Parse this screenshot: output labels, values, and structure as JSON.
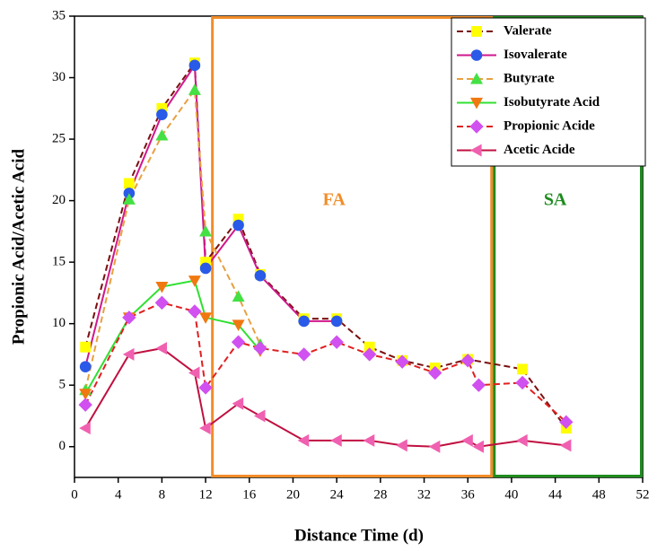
{
  "chart_data": {
    "type": "line",
    "x_label": "Distance Time (d)",
    "y_label": "Propionic Acid/Acetic Acid",
    "xlim": [
      0,
      52
    ],
    "xticks": [
      0,
      4,
      8,
      12,
      16,
      20,
      24,
      28,
      32,
      36,
      40,
      44,
      48,
      52
    ],
    "ylim": [
      -2.5,
      35
    ],
    "yticks": [
      0,
      5,
      10,
      15,
      20,
      25,
      30,
      35
    ],
    "regions": [
      {
        "label": "FA",
        "x": [
          12.5,
          38.3
        ],
        "color": "#f28c28"
      },
      {
        "label": "SA",
        "x": [
          38.3,
          52
        ],
        "color": "#1e8c1e"
      }
    ],
    "legend": "upper right",
    "series": [
      {
        "name": "Valerate",
        "color": "#ffff00",
        "line_color": "#7a1010",
        "dash": true,
        "marker": "square",
        "x": [
          1,
          5,
          8,
          11,
          12,
          15,
          17,
          21,
          24,
          27,
          30,
          33,
          36,
          41,
          45
        ],
        "values": [
          8.1,
          21.4,
          27.5,
          31.2,
          15.0,
          18.5,
          14.0,
          10.4,
          10.4,
          8.1,
          7.0,
          6.4,
          7.1,
          6.3,
          1.5
        ]
      },
      {
        "name": "Isovalerate",
        "color": "#2a5ae8",
        "line_color": "#d0188c",
        "dash": false,
        "marker": "circle",
        "x": [
          1,
          5,
          8,
          11,
          12,
          15,
          17,
          21,
          24
        ],
        "values": [
          6.5,
          20.6,
          27.0,
          31.0,
          14.5,
          18.0,
          13.9,
          10.2,
          10.2
        ]
      },
      {
        "name": "Butyrate",
        "color": "#44e044",
        "line_color": "#e8a040",
        "dash": true,
        "marker": "triangle-up",
        "x": [
          1,
          5,
          8,
          11,
          12,
          15,
          17
        ],
        "values": [
          4.6,
          20.1,
          25.3,
          29.0,
          17.5,
          12.2,
          8.3
        ]
      },
      {
        "name": "Isobutyrate Acid",
        "color": "#f07810",
        "line_color": "#30e030",
        "dash": false,
        "marker": "triangle-down",
        "x": [
          1,
          5,
          8,
          11,
          12,
          15,
          17
        ],
        "values": [
          4.3,
          10.5,
          13.0,
          13.5,
          10.5,
          9.9,
          7.8
        ]
      },
      {
        "name": "Propionic Acide",
        "color": "#d050f0",
        "line_color": "#e02020",
        "dash": true,
        "marker": "diamond",
        "x": [
          1,
          5,
          8,
          11,
          12,
          15,
          17,
          21,
          24,
          27,
          30,
          33,
          36,
          37,
          41,
          45
        ],
        "values": [
          3.4,
          10.5,
          11.7,
          11.0,
          4.8,
          8.5,
          8.0,
          7.5,
          8.5,
          7.5,
          6.9,
          6.0,
          7.0,
          5.0,
          5.2,
          2.0
        ]
      },
      {
        "name": "Acetic Acide",
        "color": "#f060b0",
        "line_color": "#c01040",
        "dash": false,
        "marker": "triangle-left",
        "x": [
          1,
          5,
          8,
          11,
          12,
          15,
          17,
          21,
          24,
          27,
          30,
          33,
          36,
          37,
          41,
          45
        ],
        "values": [
          1.5,
          7.5,
          8.0,
          6.0,
          1.5,
          3.5,
          2.5,
          0.5,
          0.5,
          0.5,
          0.1,
          0.0,
          0.5,
          0.0,
          0.5,
          0.1
        ]
      }
    ]
  }
}
